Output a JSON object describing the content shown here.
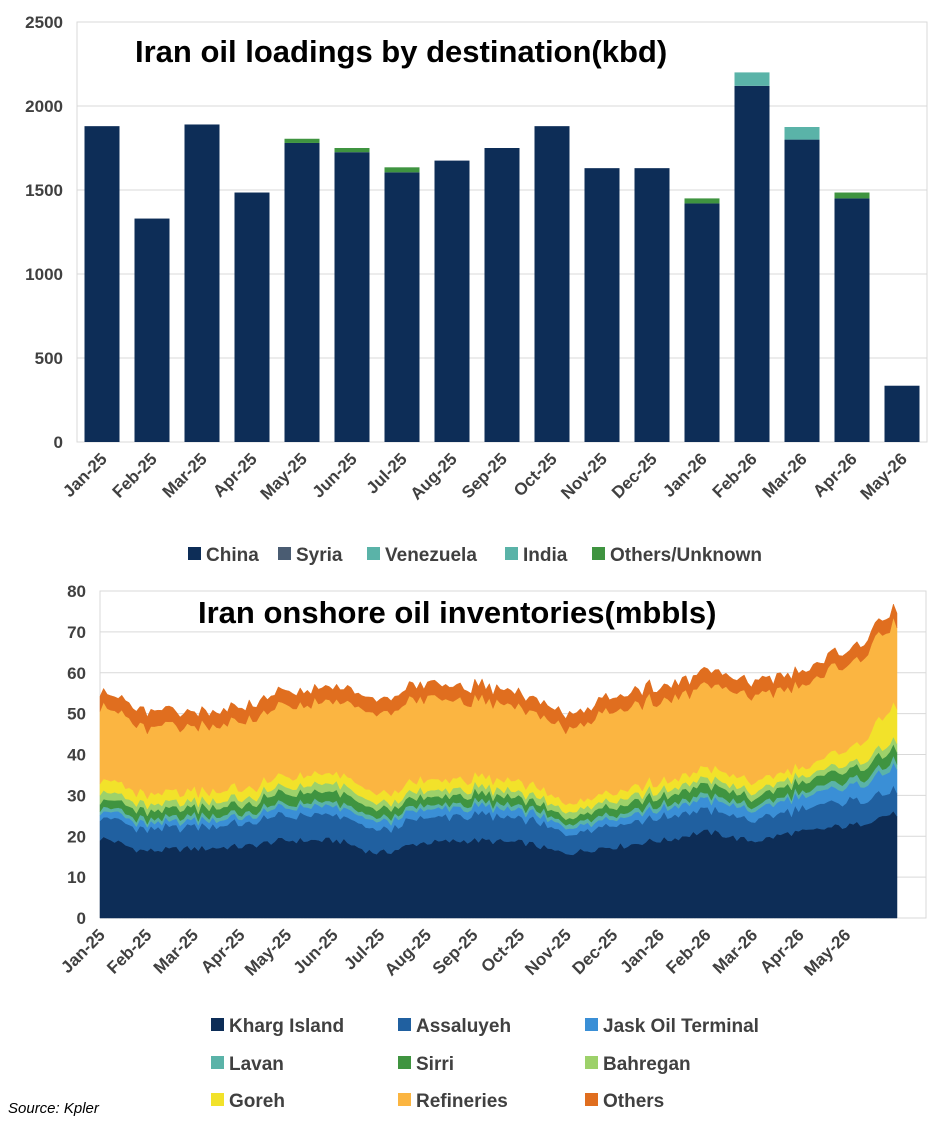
{
  "source": "Source: Kpler",
  "chart_data": [
    {
      "type": "bar",
      "stacked": true,
      "title": "Iran oil loadings by destination(kbd)",
      "xlabel": "",
      "ylabel": "",
      "ylim": [
        0,
        2500
      ],
      "yticks": [
        0,
        500,
        1000,
        1500,
        2000,
        2500
      ],
      "grid": true,
      "legend_position": "bottom",
      "categories": [
        "Jan-25",
        "Feb-25",
        "Mar-25",
        "Apr-25",
        "May-25",
        "Jun-25",
        "Jul-25",
        "Aug-25",
        "Sep-25",
        "Oct-25",
        "Nov-25",
        "Dec-25",
        "Jan-26",
        "Feb-26",
        "Mar-26",
        "Apr-26",
        "May-26"
      ],
      "series": [
        {
          "name": "China",
          "color": "#0d2d57",
          "values": [
            1880,
            1330,
            1890,
            1485,
            1780,
            1725,
            1605,
            1675,
            1750,
            1880,
            1630,
            1630,
            1420,
            2120,
            1800,
            1450,
            335
          ]
        },
        {
          "name": "Syria",
          "color": "#4a5c72",
          "values": [
            0,
            0,
            0,
            0,
            0,
            0,
            0,
            0,
            0,
            0,
            0,
            0,
            0,
            0,
            0,
            0,
            0
          ]
        },
        {
          "name": "Venezuela",
          "color": "#5ab3a8",
          "values": [
            0,
            0,
            0,
            0,
            0,
            0,
            0,
            0,
            0,
            0,
            0,
            0,
            0,
            0,
            0,
            0,
            0
          ]
        },
        {
          "name": "India",
          "color": "#5ab3a8",
          "values": [
            0,
            0,
            0,
            0,
            0,
            0,
            0,
            0,
            0,
            0,
            0,
            0,
            0,
            80,
            75,
            0,
            0
          ]
        },
        {
          "name": "Others/Unknown",
          "color": "#3f9440",
          "values": [
            0,
            0,
            0,
            0,
            25,
            25,
            30,
            0,
            0,
            0,
            0,
            0,
            30,
            0,
            0,
            35,
            0
          ]
        }
      ]
    },
    {
      "type": "area",
      "stacked": true,
      "title": "Iran onshore oil inventories(mbbls)",
      "xlabel": "",
      "ylabel": "",
      "ylim": [
        0,
        80
      ],
      "yticks": [
        0,
        10,
        20,
        30,
        40,
        50,
        60,
        70,
        80
      ],
      "grid": true,
      "legend_position": "bottom",
      "x": [
        "Jan-25",
        "Feb-25",
        "Mar-25",
        "Apr-25",
        "May-25",
        "Jun-25",
        "Jul-25",
        "Aug-25",
        "Sep-25",
        "Oct-25",
        "Nov-25",
        "Dec-25",
        "Jan-26",
        "Feb-26",
        "Mar-26",
        "Apr-26",
        "May-26",
        "May-26 end"
      ],
      "xtick_labels": [
        "Jan-25",
        "Feb-25",
        "Mar-25",
        "Apr-25",
        "May-25",
        "Jun-25",
        "Jul-25",
        "Aug-25",
        "Sep-25",
        "Oct-25",
        "Nov-25",
        "Dec-25",
        "Jan-26",
        "Feb-26",
        "Mar-26",
        "Apr-26",
        "May-26"
      ],
      "series": [
        {
          "name": "Kharg Island",
          "color": "#0d2d57",
          "values": [
            19.5,
            16.5,
            17,
            17.5,
            19,
            19,
            16,
            18.5,
            19,
            18.5,
            16,
            17.5,
            19,
            21,
            19,
            21,
            22.5,
            25.5
          ]
        },
        {
          "name": "Assaluyeh",
          "color": "#2060a0",
          "values": [
            5.5,
            5,
            5.5,
            5.5,
            6,
            6,
            5.5,
            6,
            6,
            6,
            5,
            5.5,
            5.5,
            5.5,
            5,
            5.5,
            6,
            5.5
          ]
        },
        {
          "name": "Jask Oil Terminal",
          "color": "#3a8fd6",
          "values": [
            1.5,
            1.5,
            1.5,
            1.5,
            2,
            2,
            2,
            2,
            2,
            2,
            1.5,
            1.5,
            2,
            2.5,
            2.5,
            3,
            3.5,
            5.5
          ]
        },
        {
          "name": "Lavan",
          "color": "#5ab3a8",
          "values": [
            1,
            1,
            1,
            1,
            1,
            1,
            1,
            1,
            1,
            1,
            1,
            1,
            1,
            1,
            1,
            1,
            1.5,
            1.5
          ]
        },
        {
          "name": "Sirri",
          "color": "#3f9440",
          "values": [
            2,
            2,
            2,
            2,
            2.5,
            2.5,
            2,
            2,
            2,
            2,
            1.5,
            2,
            2,
            2.5,
            2,
            2.5,
            2.5,
            3
          ]
        },
        {
          "name": "Bahregan",
          "color": "#9dd16a",
          "values": [
            2,
            1.5,
            1.5,
            1.5,
            1.5,
            2,
            1.5,
            1.5,
            1.5,
            1.5,
            1.5,
            1.5,
            1.5,
            1.5,
            1.5,
            1.5,
            1.5,
            2
          ]
        },
        {
          "name": "Goreh",
          "color": "#f2e22a",
          "values": [
            3,
            2.5,
            2.5,
            2.5,
            2.5,
            2.5,
            2.5,
            2.5,
            2.5,
            2.5,
            2,
            2,
            2,
            2.5,
            2.5,
            2,
            3.5,
            8.5
          ]
        },
        {
          "name": "Refineries",
          "color": "#fbb541",
          "values": [
            18,
            16.5,
            15.5,
            16.5,
            17,
            17.5,
            20,
            20,
            19,
            18,
            18,
            20,
            20,
            20,
            21,
            20,
            21,
            20
          ]
        },
        {
          "name": "Others",
          "color": "#e06e1f",
          "values": [
            3.5,
            4,
            3.5,
            3.5,
            3.5,
            3.5,
            3.5,
            3.5,
            3.5,
            3.5,
            3.5,
            3.5,
            3.5,
            3.5,
            3.5,
            3.5,
            3.5,
            3.5
          ]
        }
      ]
    }
  ]
}
